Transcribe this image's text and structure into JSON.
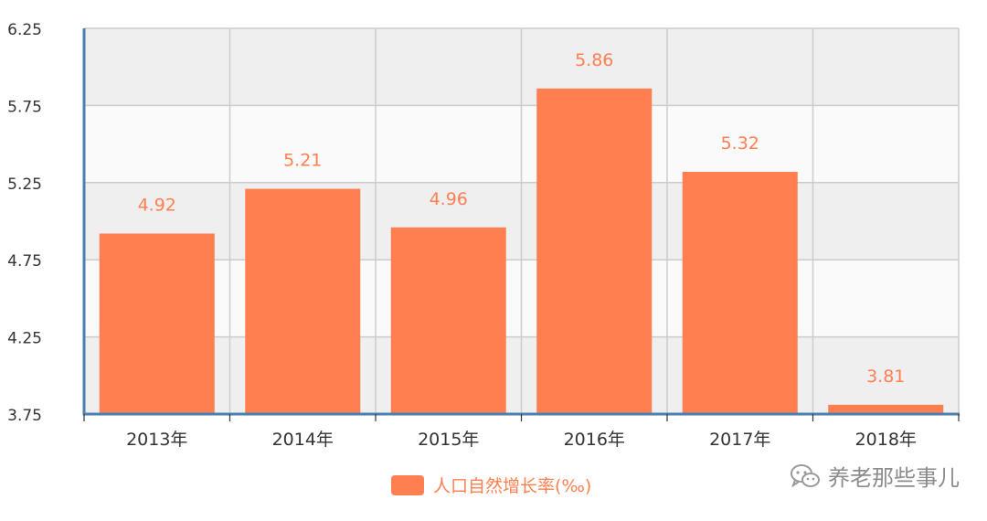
{
  "chart_data": {
    "type": "bar",
    "categories": [
      "2013年",
      "2014年",
      "2015年",
      "2016年",
      "2017年",
      "2018年"
    ],
    "series": [
      {
        "name": "人口自然增长率(‰)",
        "values": [
          4.92,
          5.21,
          4.96,
          5.86,
          5.32,
          3.81
        ]
      }
    ],
    "data_labels": [
      "4.92",
      "5.21",
      "4.96",
      "5.86",
      "5.32",
      "3.81"
    ],
    "y_ticks": [
      "6.25",
      "5.75",
      "5.25",
      "4.75",
      "4.25",
      "3.75"
    ],
    "ylim": [
      3.75,
      6.25
    ],
    "grid": true,
    "legend_position": "bottom-center",
    "colors": {
      "bar": "#ff7f50",
      "label": "#ff7f50",
      "axis": "#4a7fb0",
      "band_dark": "#efefef",
      "band_light": "#fafafa",
      "grid": "#cccccc"
    }
  },
  "legend": {
    "label": "人口自然增长率(‰)"
  },
  "watermark": {
    "text": "养老那些事儿",
    "icon": "wechat-icon"
  }
}
